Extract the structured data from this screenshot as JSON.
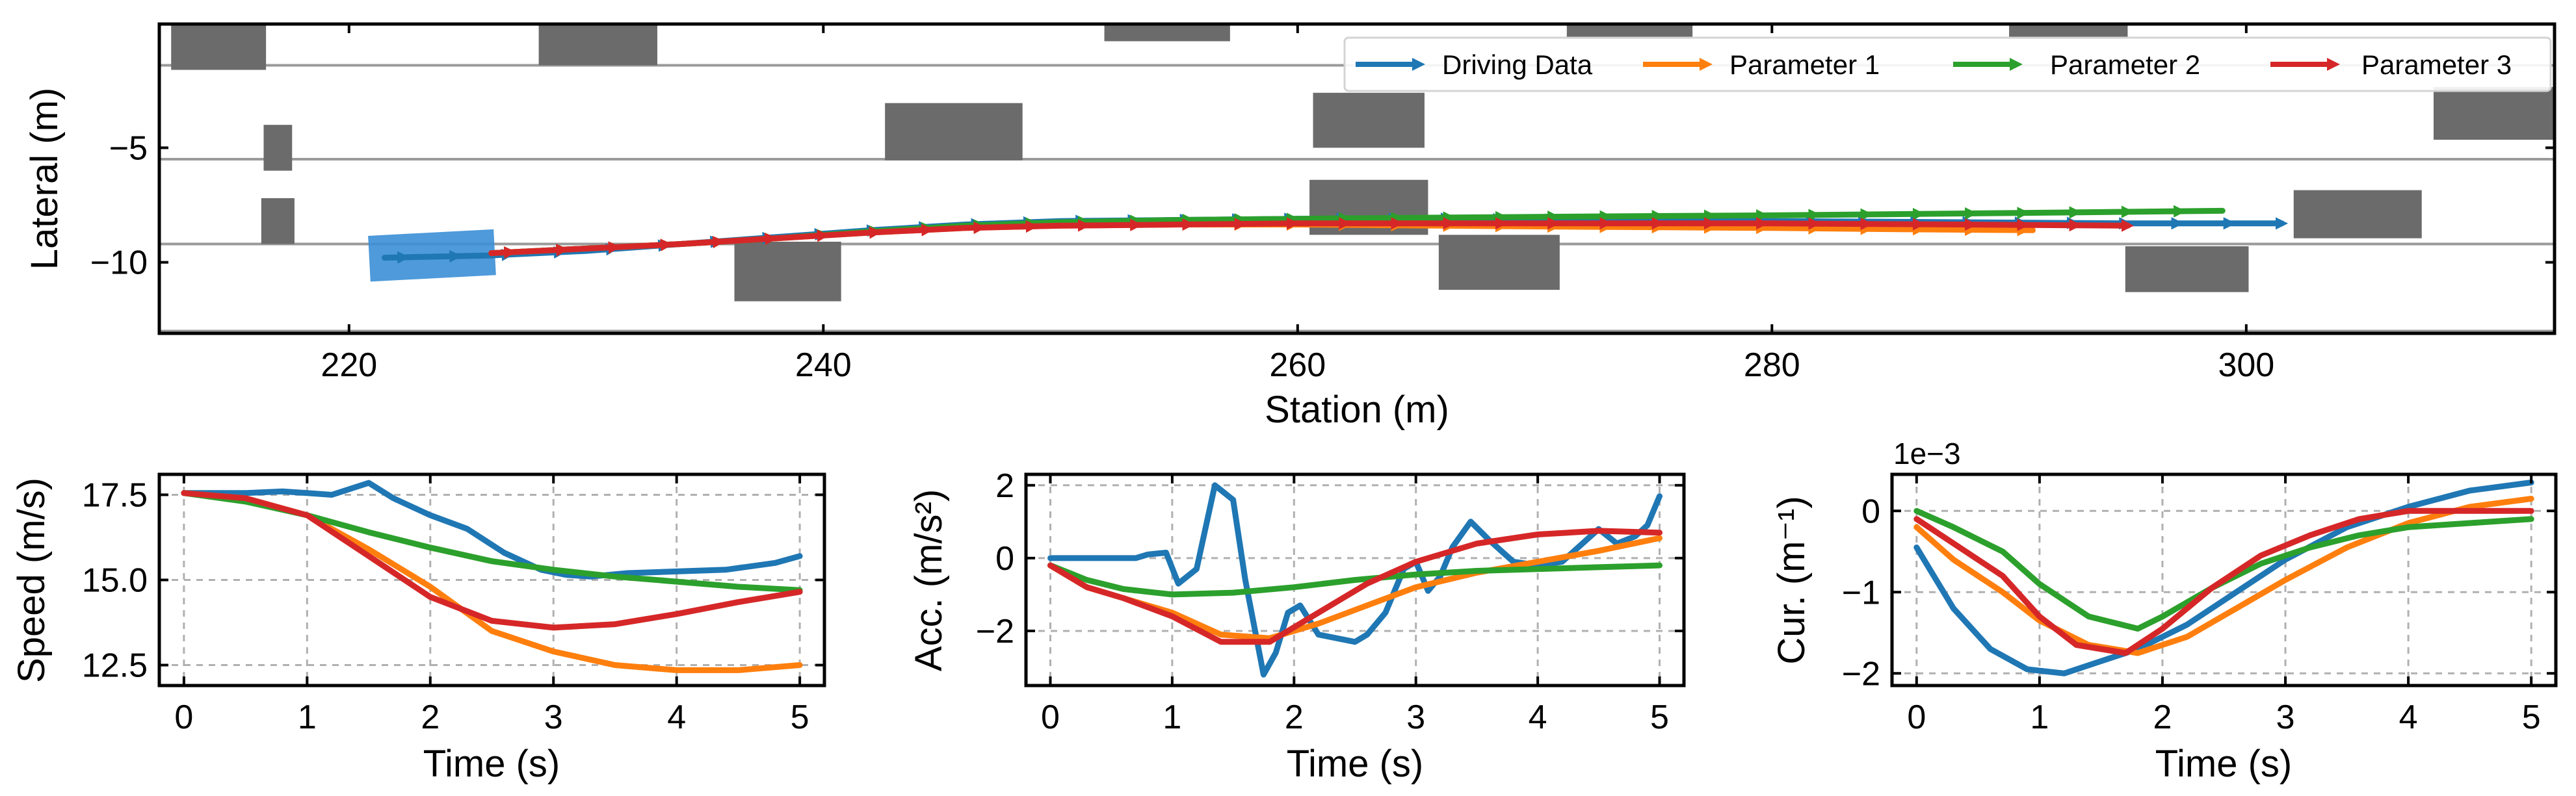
{
  "figure": {
    "colors": {
      "driving": "#1f77b4",
      "p1": "#ff7f0e",
      "p2": "#2ca02c",
      "p3": "#d62728",
      "obstacle": "#6b6b6b",
      "ego": "#3b8fd6",
      "lane": "#9a9a9a"
    }
  },
  "chart_data": [
    {
      "type": "line",
      "id": "trajectory",
      "title": "",
      "xlabel": "Station (m)",
      "ylabel": "Lateral (m)",
      "xlim": [
        212,
        313
      ],
      "ylim": [
        -13.1,
        0.4
      ],
      "xticks": [
        220,
        240,
        260,
        280,
        300
      ],
      "xtick_labels": [
        "220",
        "240",
        "260",
        "280",
        "300"
      ],
      "yticks": [
        -5,
        -10
      ],
      "ytick_labels": [
        "−5",
        "−10"
      ],
      "grid": false,
      "legend": {
        "position": "top-right",
        "entries": [
          "Driving Data",
          "Parameter 1",
          "Parameter 2",
          "Parameter 3"
        ]
      },
      "lane_lines": [
        -1.4,
        -5.5,
        -9.2,
        -13.0
      ],
      "ego_vehicle": {
        "center": [
          223.5,
          -9.7
        ],
        "length": 5.3,
        "width": 2.0,
        "heading_deg": 3
      },
      "obstacles": [
        {
          "x": 214.5,
          "y": -0.6,
          "length": 4.0,
          "width": 2.0
        },
        {
          "x": 217.0,
          "y": -5.0,
          "length": 1.2,
          "width": 2.0
        },
        {
          "x": 217.0,
          "y": -8.2,
          "length": 1.4,
          "width": 2.0
        },
        {
          "x": 230.5,
          "y": -0.5,
          "length": 5.0,
          "width": 1.8
        },
        {
          "x": 238.5,
          "y": -10.4,
          "length": 4.5,
          "width": 2.6
        },
        {
          "x": 245.5,
          "y": -4.3,
          "length": 5.8,
          "width": 2.5
        },
        {
          "x": 254.5,
          "y": 0.4,
          "length": 5.3,
          "width": 1.5
        },
        {
          "x": 263.0,
          "y": -3.8,
          "length": 4.7,
          "width": 2.4
        },
        {
          "x": 263.0,
          "y": -7.6,
          "length": 5.0,
          "width": 2.4
        },
        {
          "x": 268.5,
          "y": -10.0,
          "length": 5.1,
          "width": 2.4
        },
        {
          "x": 274.0,
          "y": 0.5,
          "length": 5.3,
          "width": 1.5
        },
        {
          "x": 292.5,
          "y": 0.5,
          "length": 5.0,
          "width": 1.5
        },
        {
          "x": 297.5,
          "y": -10.3,
          "length": 5.2,
          "width": 2.0
        },
        {
          "x": 304.7,
          "y": -7.9,
          "length": 5.4,
          "width": 2.1
        },
        {
          "x": 310.5,
          "y": -3.5,
          "length": 5.2,
          "width": 2.3
        }
      ],
      "series": [
        {
          "name": "Driving Data",
          "x": [
            221.5,
            226,
            230,
            234,
            238,
            242,
            246,
            250,
            255,
            260,
            266,
            272,
            280,
            288,
            295,
            301.5
          ],
          "y": [
            -9.8,
            -9.7,
            -9.5,
            -9.2,
            -8.9,
            -8.6,
            -8.35,
            -8.2,
            -8.15,
            -8.1,
            -8.1,
            -8.15,
            -8.2,
            -8.25,
            -8.3,
            -8.3
          ]
        },
        {
          "name": "Parameter 1",
          "x": [
            226,
            230,
            234,
            238,
            242,
            246,
            250,
            255,
            260,
            266,
            272,
            280,
            285,
            291
          ],
          "y": [
            -9.6,
            -9.4,
            -9.2,
            -8.95,
            -8.7,
            -8.5,
            -8.4,
            -8.35,
            -8.35,
            -8.4,
            -8.45,
            -8.5,
            -8.55,
            -8.6
          ]
        },
        {
          "name": "Parameter 2",
          "x": [
            226,
            230,
            234,
            238,
            242,
            246,
            250,
            255,
            260,
            266,
            272,
            280,
            290,
            299
          ],
          "y": [
            -9.6,
            -9.4,
            -9.2,
            -8.95,
            -8.65,
            -8.4,
            -8.25,
            -8.15,
            -8.1,
            -8.05,
            -8.0,
            -7.95,
            -7.85,
            -7.75
          ]
        },
        {
          "name": "Parameter 3",
          "x": [
            226,
            230,
            234,
            238,
            242,
            246,
            250,
            255,
            260,
            266,
            272,
            280,
            288,
            295
          ],
          "y": [
            -9.6,
            -9.4,
            -9.2,
            -8.95,
            -8.7,
            -8.5,
            -8.4,
            -8.35,
            -8.3,
            -8.3,
            -8.3,
            -8.3,
            -8.35,
            -8.4
          ]
        }
      ]
    },
    {
      "type": "line",
      "id": "speed",
      "title": "",
      "xlabel": "Time (s)",
      "ylabel": "Speed (m/s)",
      "xlim": [
        -0.2,
        5.2
      ],
      "ylim": [
        11.9,
        18.1
      ],
      "xticks": [
        0,
        1,
        2,
        3,
        4,
        5
      ],
      "xtick_labels": [
        "0",
        "1",
        "2",
        "3",
        "4",
        "5"
      ],
      "yticks": [
        12.5,
        15.0,
        17.5
      ],
      "ytick_labels": [
        "12.5",
        "15.0",
        "17.5"
      ],
      "grid": true,
      "series": [
        {
          "name": "Driving Data",
          "x": [
            0,
            0.5,
            0.8,
            1.0,
            1.2,
            1.5,
            1.7,
            2.0,
            2.3,
            2.6,
            2.9,
            3.1,
            3.3,
            3.6,
            4.0,
            4.4,
            4.8,
            5.0
          ],
          "y": [
            17.55,
            17.55,
            17.6,
            17.55,
            17.5,
            17.85,
            17.4,
            16.9,
            16.5,
            15.8,
            15.3,
            15.15,
            15.1,
            15.2,
            15.25,
            15.3,
            15.5,
            15.7
          ]
        },
        {
          "name": "Parameter 1",
          "x": [
            0,
            0.5,
            1.0,
            1.5,
            2.0,
            2.5,
            3.0,
            3.5,
            4.0,
            4.5,
            5.0
          ],
          "y": [
            17.55,
            17.4,
            16.9,
            15.9,
            14.8,
            13.5,
            12.9,
            12.5,
            12.35,
            12.35,
            12.5
          ]
        },
        {
          "name": "Parameter 2",
          "x": [
            0,
            0.5,
            1.0,
            1.5,
            2.0,
            2.5,
            3.0,
            3.5,
            4.0,
            4.5,
            5.0
          ],
          "y": [
            17.55,
            17.3,
            16.9,
            16.4,
            15.95,
            15.55,
            15.3,
            15.1,
            14.95,
            14.8,
            14.7
          ]
        },
        {
          "name": "Parameter 3",
          "x": [
            0,
            0.5,
            1.0,
            1.5,
            2.0,
            2.5,
            3.0,
            3.5,
            4.0,
            4.5,
            5.0
          ],
          "y": [
            17.55,
            17.4,
            16.9,
            15.7,
            14.5,
            13.8,
            13.6,
            13.7,
            14.0,
            14.35,
            14.65
          ]
        }
      ]
    },
    {
      "type": "line",
      "id": "acceleration",
      "title": "",
      "xlabel": "Time (s)",
      "ylabel": "Acc. (m/s²)",
      "xlim": [
        -0.2,
        5.2
      ],
      "ylim": [
        -3.5,
        2.3
      ],
      "xticks": [
        0,
        1,
        2,
        3,
        4,
        5
      ],
      "xtick_labels": [
        "0",
        "1",
        "2",
        "3",
        "4",
        "5"
      ],
      "yticks": [
        2,
        0,
        -2
      ],
      "ytick_labels": [
        "2",
        "0",
        "−2"
      ],
      "grid": true,
      "series": [
        {
          "name": "Driving Data",
          "x": [
            0,
            0.4,
            0.7,
            0.8,
            0.95,
            1.05,
            1.2,
            1.35,
            1.5,
            1.6,
            1.75,
            1.85,
            1.95,
            2.05,
            2.2,
            2.35,
            2.5,
            2.6,
            2.75,
            2.9,
            3.0,
            3.1,
            3.2,
            3.3,
            3.45,
            3.6,
            3.8,
            4.0,
            4.2,
            4.5,
            4.65,
            4.8,
            4.9,
            5.0
          ],
          "y": [
            0,
            0,
            0,
            0.1,
            0.15,
            -0.7,
            -0.3,
            2.0,
            1.6,
            -0.6,
            -3.2,
            -2.6,
            -1.5,
            -1.3,
            -2.1,
            -2.2,
            -2.3,
            -2.1,
            -1.5,
            -0.3,
            -0.1,
            -0.9,
            -0.5,
            0.3,
            1.0,
            0.5,
            -0.1,
            -0.2,
            -0.1,
            0.8,
            0.4,
            0.6,
            0.9,
            1.7
          ]
        },
        {
          "name": "Parameter 1",
          "x": [
            0,
            0.3,
            0.6,
            1.0,
            1.4,
            1.8,
            2.2,
            2.6,
            3.0,
            3.5,
            4.0,
            4.5,
            5.0
          ],
          "y": [
            -0.2,
            -0.8,
            -1.1,
            -1.5,
            -2.1,
            -2.2,
            -1.8,
            -1.3,
            -0.8,
            -0.4,
            -0.1,
            0.2,
            0.55
          ]
        },
        {
          "name": "Parameter 2",
          "x": [
            0,
            0.3,
            0.6,
            1.0,
            1.5,
            2.0,
            2.5,
            3.0,
            3.5,
            4.0,
            4.5,
            5.0
          ],
          "y": [
            -0.2,
            -0.6,
            -0.85,
            -1.0,
            -0.95,
            -0.8,
            -0.6,
            -0.45,
            -0.35,
            -0.3,
            -0.25,
            -0.2
          ]
        },
        {
          "name": "Parameter 3",
          "x": [
            0,
            0.3,
            0.6,
            1.0,
            1.4,
            1.8,
            2.2,
            2.6,
            3.0,
            3.5,
            4.0,
            4.5,
            5.0
          ],
          "y": [
            -0.2,
            -0.8,
            -1.1,
            -1.6,
            -2.3,
            -2.3,
            -1.5,
            -0.7,
            -0.1,
            0.4,
            0.65,
            0.75,
            0.7
          ]
        }
      ]
    },
    {
      "type": "line",
      "id": "curvature",
      "title": "",
      "xlabel": "Time (s)",
      "ylabel": "Cur. (m⁻¹)",
      "scale_note": "1e−3",
      "xlim": [
        -0.2,
        5.2
      ],
      "ylim": [
        -2.15,
        0.45
      ],
      "xticks": [
        0,
        1,
        2,
        3,
        4,
        5
      ],
      "xtick_labels": [
        "0",
        "1",
        "2",
        "3",
        "4",
        "5"
      ],
      "yticks": [
        0,
        -1,
        -2
      ],
      "ytick_labels": [
        "0",
        "−1",
        "−2"
      ],
      "grid": true,
      "series": [
        {
          "name": "Driving Data",
          "x": [
            0,
            0.3,
            0.6,
            0.9,
            1.2,
            1.5,
            1.8,
            2.2,
            2.6,
            3.0,
            3.5,
            4.0,
            4.5,
            5.0
          ],
          "y": [
            -0.45,
            -1.2,
            -1.7,
            -1.95,
            -2.0,
            -1.85,
            -1.7,
            -1.4,
            -1.0,
            -0.6,
            -0.2,
            0.05,
            0.25,
            0.35
          ]
        },
        {
          "name": "Parameter 1",
          "x": [
            0,
            0.3,
            0.7,
            1.0,
            1.4,
            1.8,
            2.2,
            2.6,
            3.0,
            3.5,
            4.0,
            4.5,
            5.0
          ],
          "y": [
            -0.2,
            -0.6,
            -1.0,
            -1.35,
            -1.65,
            -1.75,
            -1.55,
            -1.2,
            -0.85,
            -0.45,
            -0.15,
            0.05,
            0.15
          ]
        },
        {
          "name": "Parameter 2",
          "x": [
            0,
            0.3,
            0.7,
            1.0,
            1.4,
            1.8,
            2.0,
            2.4,
            2.8,
            3.2,
            3.6,
            4.0,
            4.5,
            5.0
          ],
          "y": [
            0,
            -0.2,
            -0.5,
            -0.9,
            -1.3,
            -1.45,
            -1.3,
            -0.95,
            -0.65,
            -0.45,
            -0.3,
            -0.2,
            -0.15,
            -0.1
          ]
        },
        {
          "name": "Parameter 3",
          "x": [
            0,
            0.3,
            0.7,
            1.0,
            1.3,
            1.7,
            2.0,
            2.4,
            2.8,
            3.2,
            3.6,
            4.0,
            4.5,
            5.0
          ],
          "y": [
            -0.1,
            -0.4,
            -0.8,
            -1.3,
            -1.65,
            -1.75,
            -1.45,
            -0.95,
            -0.55,
            -0.3,
            -0.1,
            0.0,
            0.0,
            0.0
          ]
        }
      ]
    }
  ]
}
